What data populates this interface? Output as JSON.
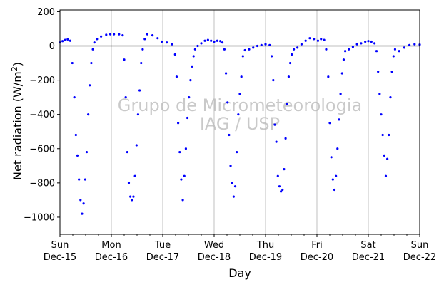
{
  "chart_data": {
    "type": "scatter",
    "title": "",
    "xlabel": "Day",
    "ylabel_main": "Net radiation (W/m",
    "ylabel_sup": "2",
    "ylabel_close": ")",
    "ylim": [
      -1100,
      210
    ],
    "xlim": [
      0,
      7
    ],
    "yticks": [
      200,
      0,
      -200,
      -400,
      -600,
      -800,
      -1000
    ],
    "x_tick_positions": [
      0,
      1,
      2,
      3,
      4,
      5,
      6,
      7
    ],
    "x_tick_labels": [
      {
        "weekday": "Sun",
        "date": "Dec-15"
      },
      {
        "weekday": "Mon",
        "date": "Dec-16"
      },
      {
        "weekday": "Tue",
        "date": "Dec-17"
      },
      {
        "weekday": "Wed",
        "date": "Dec-18"
      },
      {
        "weekday": "Thu",
        "date": "Dec-19"
      },
      {
        "weekday": "Fri",
        "date": "Dec-20"
      },
      {
        "weekday": "Sat",
        "date": "Dec-21"
      },
      {
        "weekday": "Sun",
        "date": "Dec-22"
      }
    ],
    "x_minor_ticks_per_day": 4,
    "grid": "vertical",
    "zero_line": true,
    "marker_color": "#0000ff",
    "watermark": [
      "Grupo de Micrometeorologia",
      "IAG / USP"
    ],
    "series": [
      {
        "values": [
          [
            0.0,
            20
          ],
          [
            0.05,
            28
          ],
          [
            0.1,
            35
          ],
          [
            0.15,
            38
          ],
          [
            0.2,
            30
          ],
          [
            0.24,
            -100
          ],
          [
            0.28,
            -300
          ],
          [
            0.31,
            -520
          ],
          [
            0.34,
            -640
          ],
          [
            0.37,
            -780
          ],
          [
            0.4,
            -900
          ],
          [
            0.43,
            -980
          ],
          [
            0.46,
            -920
          ],
          [
            0.49,
            -780
          ],
          [
            0.52,
            -620
          ],
          [
            0.55,
            -400
          ],
          [
            0.58,
            -230
          ],
          [
            0.61,
            -100
          ],
          [
            0.64,
            -20
          ],
          [
            0.67,
            20
          ],
          [
            0.72,
            40
          ],
          [
            0.8,
            55
          ],
          [
            0.9,
            65
          ],
          [
            0.98,
            68
          ],
          [
            1.05,
            68
          ],
          [
            1.15,
            68
          ],
          [
            1.22,
            62
          ],
          [
            1.25,
            -80
          ],
          [
            1.28,
            -300
          ],
          [
            1.31,
            -620
          ],
          [
            1.34,
            -800
          ],
          [
            1.37,
            -880
          ],
          [
            1.4,
            -900
          ],
          [
            1.43,
            -880
          ],
          [
            1.46,
            -760
          ],
          [
            1.49,
            -580
          ],
          [
            1.52,
            -400
          ],
          [
            1.55,
            -260
          ],
          [
            1.58,
            -100
          ],
          [
            1.61,
            -20
          ],
          [
            1.65,
            40
          ],
          [
            1.7,
            68
          ],
          [
            1.8,
            62
          ],
          [
            1.9,
            45
          ],
          [
            1.98,
            25
          ],
          [
            2.08,
            20
          ],
          [
            2.18,
            10
          ],
          [
            2.24,
            -50
          ],
          [
            2.27,
            -180
          ],
          [
            2.3,
            -450
          ],
          [
            2.33,
            -620
          ],
          [
            2.36,
            -780
          ],
          [
            2.39,
            -900
          ],
          [
            2.42,
            -760
          ],
          [
            2.45,
            -600
          ],
          [
            2.48,
            -420
          ],
          [
            2.51,
            -300
          ],
          [
            2.54,
            -200
          ],
          [
            2.57,
            -120
          ],
          [
            2.6,
            -60
          ],
          [
            2.63,
            -20
          ],
          [
            2.68,
            0
          ],
          [
            2.75,
            15
          ],
          [
            2.82,
            30
          ],
          [
            2.88,
            35
          ],
          [
            2.94,
            30
          ],
          [
            3.0,
            25
          ],
          [
            3.06,
            30
          ],
          [
            3.12,
            28
          ],
          [
            3.16,
            20
          ],
          [
            3.2,
            -20
          ],
          [
            3.23,
            -160
          ],
          [
            3.26,
            -330
          ],
          [
            3.29,
            -520
          ],
          [
            3.32,
            -700
          ],
          [
            3.35,
            -800
          ],
          [
            3.38,
            -880
          ],
          [
            3.41,
            -820
          ],
          [
            3.44,
            -620
          ],
          [
            3.47,
            -400
          ],
          [
            3.5,
            -280
          ],
          [
            3.53,
            -180
          ],
          [
            3.56,
            -60
          ],
          [
            3.6,
            -25
          ],
          [
            3.68,
            -20
          ],
          [
            3.76,
            -10
          ],
          [
            3.84,
            0
          ],
          [
            3.92,
            5
          ],
          [
            4.0,
            10
          ],
          [
            4.08,
            5
          ],
          [
            4.12,
            -60
          ],
          [
            4.15,
            -200
          ],
          [
            4.18,
            -460
          ],
          [
            4.21,
            -560
          ],
          [
            4.24,
            -760
          ],
          [
            4.27,
            -820
          ],
          [
            4.3,
            -850
          ],
          [
            4.33,
            -840
          ],
          [
            4.36,
            -720
          ],
          [
            4.39,
            -540
          ],
          [
            4.42,
            -340
          ],
          [
            4.45,
            -180
          ],
          [
            4.48,
            -100
          ],
          [
            4.51,
            -50
          ],
          [
            4.55,
            -20
          ],
          [
            4.62,
            -10
          ],
          [
            4.7,
            10
          ],
          [
            4.78,
            30
          ],
          [
            4.86,
            45
          ],
          [
            4.94,
            40
          ],
          [
            5.02,
            30
          ],
          [
            5.08,
            40
          ],
          [
            5.14,
            35
          ],
          [
            5.18,
            -20
          ],
          [
            5.22,
            -180
          ],
          [
            5.25,
            -450
          ],
          [
            5.28,
            -650
          ],
          [
            5.31,
            -780
          ],
          [
            5.34,
            -840
          ],
          [
            5.37,
            -760
          ],
          [
            5.4,
            -600
          ],
          [
            5.43,
            -430
          ],
          [
            5.46,
            -280
          ],
          [
            5.49,
            -160
          ],
          [
            5.52,
            -80
          ],
          [
            5.55,
            -30
          ],
          [
            5.62,
            -20
          ],
          [
            5.7,
            -5
          ],
          [
            5.78,
            10
          ],
          [
            5.86,
            15
          ],
          [
            5.94,
            25
          ],
          [
            6.0,
            28
          ],
          [
            6.06,
            25
          ],
          [
            6.12,
            15
          ],
          [
            6.16,
            -30
          ],
          [
            6.19,
            -150
          ],
          [
            6.22,
            -280
          ],
          [
            6.25,
            -400
          ],
          [
            6.28,
            -520
          ],
          [
            6.31,
            -640
          ],
          [
            6.34,
            -760
          ],
          [
            6.37,
            -660
          ],
          [
            6.4,
            -520
          ],
          [
            6.43,
            -300
          ],
          [
            6.46,
            -150
          ],
          [
            6.49,
            -60
          ],
          [
            6.52,
            -20
          ],
          [
            6.6,
            -30
          ],
          [
            6.7,
            -10
          ],
          [
            6.8,
            5
          ],
          [
            6.9,
            10
          ],
          [
            7.0,
            8
          ]
        ]
      }
    ]
  }
}
